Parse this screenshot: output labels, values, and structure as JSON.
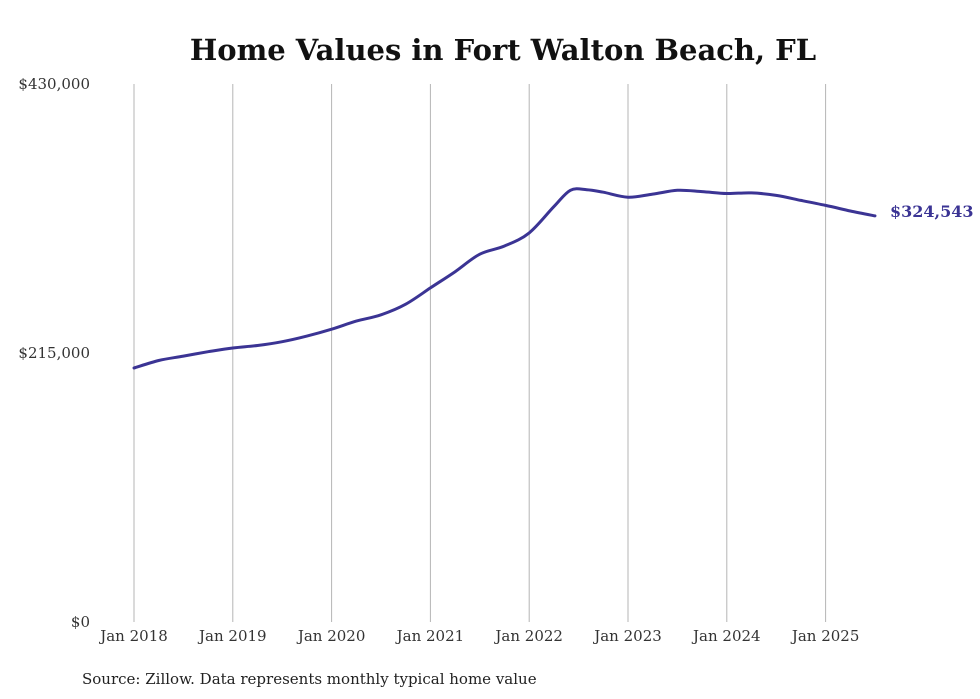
{
  "chart_data": {
    "type": "line",
    "title": "Home Values in Fort Walton Beach, FL",
    "xlabel": "",
    "ylabel": "",
    "x_ticks": [
      "Jan 2018",
      "Jan 2019",
      "Jan 2020",
      "Jan 2021",
      "Jan 2022",
      "Jan 2023",
      "Jan 2024",
      "Jan 2025"
    ],
    "y_ticks": [
      {
        "value": 0,
        "label": "$0"
      },
      {
        "value": 215000,
        "label": "$215,000"
      },
      {
        "value": 430000,
        "label": "$430,000"
      }
    ],
    "ylim": [
      0,
      430000
    ],
    "xlim": [
      "2018-01",
      "2025-07"
    ],
    "grid": "vertical",
    "line_color": "#3b3494",
    "series": [
      {
        "name": "",
        "points": [
          {
            "x": "2018-01",
            "y": 203000
          },
          {
            "x": "2018-04",
            "y": 209000
          },
          {
            "x": "2018-07",
            "y": 212500
          },
          {
            "x": "2018-10",
            "y": 216000
          },
          {
            "x": "2019-01",
            "y": 219000
          },
          {
            "x": "2019-04",
            "y": 221000
          },
          {
            "x": "2019-07",
            "y": 224000
          },
          {
            "x": "2019-10",
            "y": 228500
          },
          {
            "x": "2020-01",
            "y": 234000
          },
          {
            "x": "2020-04",
            "y": 240500
          },
          {
            "x": "2020-07",
            "y": 245500
          },
          {
            "x": "2020-10",
            "y": 254000
          },
          {
            "x": "2021-01",
            "y": 267000
          },
          {
            "x": "2021-04",
            "y": 280000
          },
          {
            "x": "2021-07",
            "y": 294000
          },
          {
            "x": "2021-10",
            "y": 300500
          },
          {
            "x": "2022-01",
            "y": 311000
          },
          {
            "x": "2022-04",
            "y": 332000
          },
          {
            "x": "2022-06",
            "y": 345000
          },
          {
            "x": "2022-08",
            "y": 345500
          },
          {
            "x": "2022-10",
            "y": 343500
          },
          {
            "x": "2023-01",
            "y": 339500
          },
          {
            "x": "2023-04",
            "y": 342000
          },
          {
            "x": "2023-07",
            "y": 345000
          },
          {
            "x": "2023-10",
            "y": 344000
          },
          {
            "x": "2024-01",
            "y": 342500
          },
          {
            "x": "2024-04",
            "y": 343000
          },
          {
            "x": "2024-07",
            "y": 341000
          },
          {
            "x": "2024-10",
            "y": 337000
          },
          {
            "x": "2025-01",
            "y": 333000
          },
          {
            "x": "2025-04",
            "y": 328500
          },
          {
            "x": "2025-07",
            "y": 324543
          }
        ]
      }
    ],
    "end_label": "$324,543",
    "source": "Source: Zillow. Data represents monthly typical home value"
  }
}
